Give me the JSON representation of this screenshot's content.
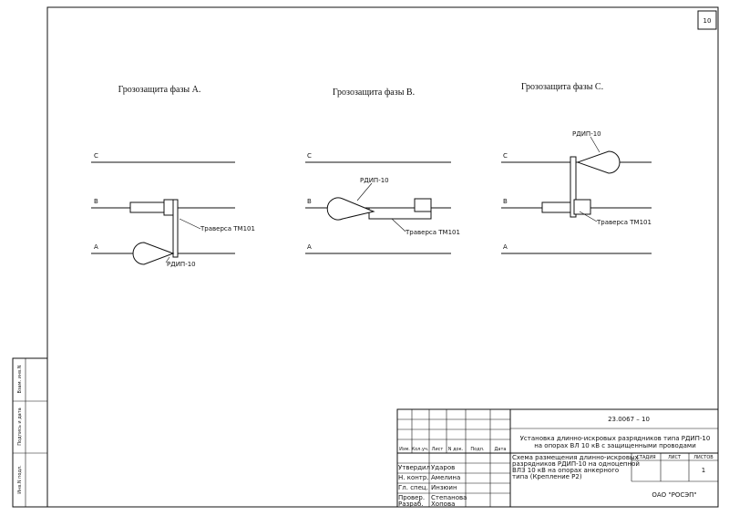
{
  "page_number": "10",
  "panels": [
    {
      "title": "Грозозащита фазы А.",
      "phase_labels": [
        "C",
        "B",
        "A"
      ],
      "arrester_label": "РДИП-10",
      "traverse_label": "Траверса ТМ101"
    },
    {
      "title": "Грозозащита фазы В.",
      "phase_labels": [
        "C",
        "B",
        "A"
      ],
      "arrester_label": "РДИП-10",
      "traverse_label": "Траверса ТМ101"
    },
    {
      "title": "Грозозащита фазы С.",
      "phase_labels": [
        "C",
        "B",
        "A"
      ],
      "arrester_label": "РДИП-10",
      "traverse_label": "Траверса ТМ101"
    }
  ],
  "side_stamps": [
    "Взам. инв.N",
    "Подпись и дата",
    "Инв.N подл."
  ],
  "title_block": {
    "code": "23.0067 – 10",
    "project_title": [
      "Установка длинно-искровых разрядников типа РДИП-10",
      "на опорах ВЛ 10 кВ с защищенными проводами"
    ],
    "header": [
      "Изм.",
      "Кол.уч.",
      "Лист",
      "N док.",
      "Подп.",
      "Дата"
    ],
    "signatures": [
      {
        "role": "Утвердил",
        "name": "Ударов"
      },
      {
        "role": "Н. контр.",
        "name": "Амелина"
      },
      {
        "role": "Гл. спец.",
        "name": "Инзюин"
      },
      {
        "role": "Провер.",
        "name": "Степанова"
      },
      {
        "role": "Разраб.",
        "name": "Хопова"
      }
    ],
    "sheet_title": [
      "Схема размещения длинно-искровых",
      "разрядников РДИП-10 на одноцепной",
      "ВЛЗ 10 кВ на опорах анкерного",
      "типа (Крепление Р2)"
    ],
    "stage_header": "СТАДИЯ",
    "sheet_header": "ЛИСТ",
    "sheets_header": "ЛИСТОВ",
    "sheets_value": "1",
    "organization": "ОАО \"РОСЭП\""
  }
}
